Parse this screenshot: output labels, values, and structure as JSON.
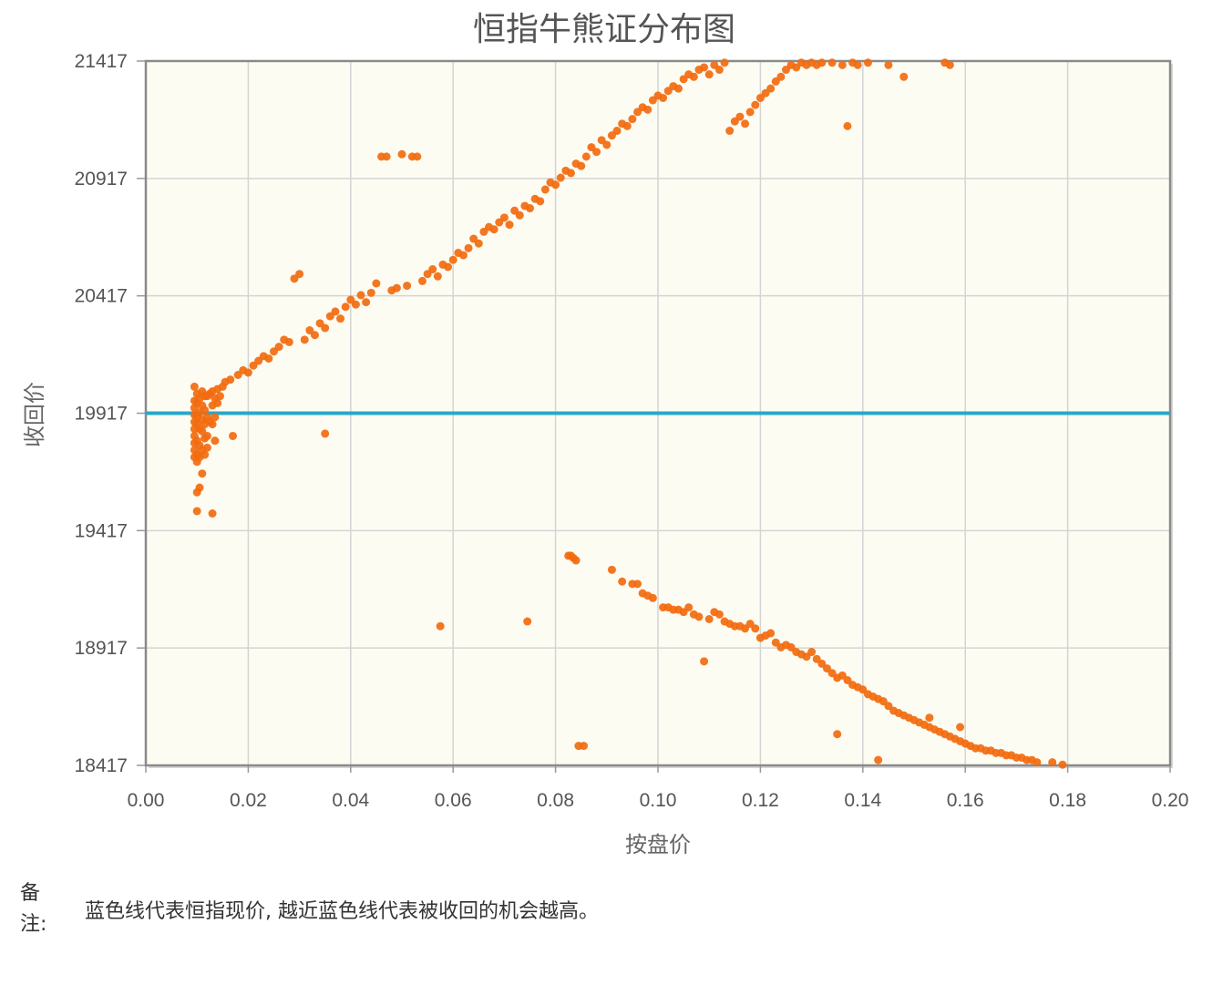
{
  "chart_data": {
    "type": "scatter",
    "title": "恒指牛熊证分布图",
    "xlabel": "按盘价",
    "ylabel": "收回价",
    "xlim": [
      0,
      0.2
    ],
    "ylim": [
      18417,
      21417
    ],
    "x_ticks": [
      "0.00",
      "0.02",
      "0.04",
      "0.06",
      "0.08",
      "0.10",
      "0.12",
      "0.14",
      "0.16",
      "0.18",
      "0.20"
    ],
    "y_ticks": [
      "18417",
      "18917",
      "19417",
      "19917",
      "20417",
      "20917",
      "21417"
    ],
    "grid": true,
    "reference_line": {
      "y": 19917,
      "color": "#29a7c9"
    },
    "marker_color": "#f26b0f",
    "plot_bg": "#fdfcf3",
    "bull_series": [
      [
        0.0095,
        19970
      ],
      [
        0.0095,
        19940
      ],
      [
        0.0095,
        19910
      ],
      [
        0.0095,
        19880
      ],
      [
        0.0095,
        19850
      ],
      [
        0.0095,
        19820
      ],
      [
        0.0095,
        19790
      ],
      [
        0.0095,
        19760
      ],
      [
        0.0095,
        19730
      ],
      [
        0.0095,
        20030
      ],
      [
        0.01,
        20000
      ],
      [
        0.01,
        19960
      ],
      [
        0.01,
        19900
      ],
      [
        0.01,
        19870
      ],
      [
        0.01,
        19800
      ],
      [
        0.01,
        19740
      ],
      [
        0.01,
        19710
      ],
      [
        0.01,
        19580
      ],
      [
        0.01,
        19500
      ],
      [
        0.0105,
        19980
      ],
      [
        0.0105,
        19920
      ],
      [
        0.0105,
        19850
      ],
      [
        0.0105,
        19780
      ],
      [
        0.0105,
        19730
      ],
      [
        0.0105,
        19600
      ],
      [
        0.011,
        20010
      ],
      [
        0.011,
        19950
      ],
      [
        0.011,
        19890
      ],
      [
        0.011,
        19840
      ],
      [
        0.011,
        19760
      ],
      [
        0.011,
        19660
      ],
      [
        0.0115,
        19990
      ],
      [
        0.0115,
        19930
      ],
      [
        0.0115,
        19870
      ],
      [
        0.0115,
        19810
      ],
      [
        0.0115,
        19740
      ],
      [
        0.012,
        19990
      ],
      [
        0.012,
        19900
      ],
      [
        0.012,
        19820
      ],
      [
        0.012,
        19770
      ],
      [
        0.0125,
        20000
      ],
      [
        0.0125,
        19880
      ],
      [
        0.013,
        20010
      ],
      [
        0.013,
        19950
      ],
      [
        0.013,
        19870
      ],
      [
        0.013,
        19490
      ],
      [
        0.0135,
        19980
      ],
      [
        0.0135,
        19900
      ],
      [
        0.0135,
        19800
      ],
      [
        0.014,
        20020
      ],
      [
        0.014,
        19960
      ],
      [
        0.0145,
        19990
      ],
      [
        0.015,
        20030
      ],
      [
        0.0155,
        20050
      ],
      [
        0.0165,
        20060
      ],
      [
        0.017,
        19820
      ],
      [
        0.018,
        20080
      ],
      [
        0.019,
        20100
      ],
      [
        0.02,
        20090
      ],
      [
        0.021,
        20120
      ],
      [
        0.022,
        20140
      ],
      [
        0.023,
        20160
      ],
      [
        0.024,
        20150
      ],
      [
        0.025,
        20180
      ],
      [
        0.026,
        20200
      ],
      [
        0.027,
        20230
      ],
      [
        0.028,
        20220
      ],
      [
        0.029,
        20490
      ],
      [
        0.03,
        20510
      ],
      [
        0.031,
        20230
      ],
      [
        0.032,
        20270
      ],
      [
        0.033,
        20250
      ],
      [
        0.034,
        20300
      ],
      [
        0.035,
        20280
      ],
      [
        0.036,
        20330
      ],
      [
        0.037,
        20350
      ],
      [
        0.038,
        20320
      ],
      [
        0.039,
        20370
      ],
      [
        0.04,
        20400
      ],
      [
        0.041,
        20380
      ],
      [
        0.042,
        20420
      ],
      [
        0.043,
        20390
      ],
      [
        0.044,
        20430
      ],
      [
        0.045,
        20470
      ],
      [
        0.046,
        21010
      ],
      [
        0.047,
        21010
      ],
      [
        0.048,
        20440
      ],
      [
        0.049,
        20450
      ],
      [
        0.05,
        21020
      ],
      [
        0.051,
        20460
      ],
      [
        0.052,
        21010
      ],
      [
        0.053,
        21010
      ],
      [
        0.035,
        19830
      ],
      [
        0.054,
        20480
      ],
      [
        0.055,
        20510
      ],
      [
        0.056,
        20530
      ],
      [
        0.057,
        20500
      ],
      [
        0.058,
        20550
      ],
      [
        0.059,
        20540
      ],
      [
        0.06,
        20570
      ],
      [
        0.061,
        20600
      ],
      [
        0.062,
        20590
      ],
      [
        0.063,
        20620
      ],
      [
        0.064,
        20660
      ],
      [
        0.065,
        20640
      ],
      [
        0.066,
        20690
      ],
      [
        0.067,
        20710
      ],
      [
        0.068,
        20700
      ],
      [
        0.069,
        20730
      ],
      [
        0.07,
        20750
      ],
      [
        0.071,
        20720
      ],
      [
        0.072,
        20780
      ],
      [
        0.073,
        20760
      ],
      [
        0.074,
        20800
      ],
      [
        0.075,
        20790
      ],
      [
        0.076,
        20830
      ],
      [
        0.077,
        20820
      ],
      [
        0.078,
        20870
      ],
      [
        0.079,
        20900
      ],
      [
        0.08,
        20890
      ],
      [
        0.081,
        20920
      ],
      [
        0.082,
        20950
      ],
      [
        0.083,
        20940
      ],
      [
        0.084,
        20980
      ],
      [
        0.085,
        20970
      ],
      [
        0.086,
        21010
      ],
      [
        0.087,
        21050
      ],
      [
        0.088,
        21030
      ],
      [
        0.089,
        21080
      ],
      [
        0.09,
        21060
      ],
      [
        0.091,
        21100
      ],
      [
        0.092,
        21120
      ],
      [
        0.093,
        21150
      ],
      [
        0.094,
        21140
      ],
      [
        0.095,
        21170
      ],
      [
        0.096,
        21200
      ],
      [
        0.097,
        21220
      ],
      [
        0.098,
        21210
      ],
      [
        0.099,
        21250
      ],
      [
        0.1,
        21270
      ],
      [
        0.101,
        21260
      ],
      [
        0.102,
        21290
      ],
      [
        0.103,
        21310
      ],
      [
        0.104,
        21300
      ],
      [
        0.105,
        21340
      ],
      [
        0.106,
        21360
      ],
      [
        0.107,
        21350
      ],
      [
        0.108,
        21380
      ],
      [
        0.109,
        21390
      ],
      [
        0.11,
        21360
      ],
      [
        0.111,
        21400
      ],
      [
        0.112,
        21380
      ],
      [
        0.113,
        21410
      ],
      [
        0.114,
        21120
      ],
      [
        0.115,
        21160
      ],
      [
        0.116,
        21180
      ],
      [
        0.117,
        21150
      ],
      [
        0.118,
        21200
      ],
      [
        0.119,
        21230
      ],
      [
        0.12,
        21260
      ],
      [
        0.121,
        21280
      ],
      [
        0.122,
        21300
      ],
      [
        0.123,
        21330
      ],
      [
        0.124,
        21350
      ],
      [
        0.125,
        21380
      ],
      [
        0.126,
        21400
      ],
      [
        0.127,
        21390
      ],
      [
        0.128,
        21410
      ],
      [
        0.129,
        21400
      ],
      [
        0.13,
        21410
      ],
      [
        0.131,
        21400
      ],
      [
        0.132,
        21410
      ],
      [
        0.134,
        21410
      ],
      [
        0.136,
        21400
      ],
      [
        0.137,
        21140
      ],
      [
        0.138,
        21410
      ],
      [
        0.139,
        21400
      ],
      [
        0.141,
        21410
      ],
      [
        0.145,
        21400
      ],
      [
        0.148,
        21350
      ],
      [
        0.156,
        21410
      ],
      [
        0.157,
        21400
      ]
    ],
    "bear_series": [
      [
        0.0825,
        19310
      ],
      [
        0.0835,
        19300
      ],
      [
        0.084,
        19290
      ],
      [
        0.083,
        19310
      ],
      [
        0.0845,
        18500
      ],
      [
        0.0855,
        18500
      ],
      [
        0.0575,
        19010
      ],
      [
        0.0745,
        19030
      ],
      [
        0.091,
        19250
      ],
      [
        0.093,
        19200
      ],
      [
        0.095,
        19190
      ],
      [
        0.096,
        19190
      ],
      [
        0.097,
        19150
      ],
      [
        0.098,
        19140
      ],
      [
        0.099,
        19130
      ],
      [
        0.101,
        19090
      ],
      [
        0.102,
        19090
      ],
      [
        0.103,
        19080
      ],
      [
        0.104,
        19080
      ],
      [
        0.105,
        19070
      ],
      [
        0.106,
        19090
      ],
      [
        0.107,
        19060
      ],
      [
        0.108,
        19050
      ],
      [
        0.109,
        18860
      ],
      [
        0.11,
        19040
      ],
      [
        0.111,
        19070
      ],
      [
        0.112,
        19060
      ],
      [
        0.113,
        19030
      ],
      [
        0.114,
        19020
      ],
      [
        0.115,
        19010
      ],
      [
        0.116,
        19010
      ],
      [
        0.117,
        19000
      ],
      [
        0.118,
        19020
      ],
      [
        0.119,
        19000
      ],
      [
        0.12,
        18960
      ],
      [
        0.121,
        18970
      ],
      [
        0.122,
        18980
      ],
      [
        0.123,
        18940
      ],
      [
        0.124,
        18920
      ],
      [
        0.125,
        18930
      ],
      [
        0.126,
        18920
      ],
      [
        0.127,
        18900
      ],
      [
        0.128,
        18890
      ],
      [
        0.129,
        18880
      ],
      [
        0.13,
        18900
      ],
      [
        0.131,
        18870
      ],
      [
        0.132,
        18850
      ],
      [
        0.133,
        18830
      ],
      [
        0.134,
        18810
      ],
      [
        0.135,
        18790
      ],
      [
        0.136,
        18800
      ],
      [
        0.137,
        18780
      ],
      [
        0.138,
        18760
      ],
      [
        0.139,
        18750
      ],
      [
        0.14,
        18740
      ],
      [
        0.141,
        18720
      ],
      [
        0.142,
        18710
      ],
      [
        0.143,
        18700
      ],
      [
        0.144,
        18690
      ],
      [
        0.145,
        18670
      ],
      [
        0.146,
        18650
      ],
      [
        0.147,
        18640
      ],
      [
        0.148,
        18630
      ],
      [
        0.149,
        18620
      ],
      [
        0.15,
        18610
      ],
      [
        0.151,
        18600
      ],
      [
        0.152,
        18590
      ],
      [
        0.153,
        18580
      ],
      [
        0.154,
        18570
      ],
      [
        0.155,
        18560
      ],
      [
        0.156,
        18550
      ],
      [
        0.157,
        18540
      ],
      [
        0.158,
        18530
      ],
      [
        0.159,
        18520
      ],
      [
        0.16,
        18510
      ],
      [
        0.161,
        18500
      ],
      [
        0.162,
        18490
      ],
      [
        0.163,
        18490
      ],
      [
        0.164,
        18480
      ],
      [
        0.165,
        18480
      ],
      [
        0.166,
        18470
      ],
      [
        0.167,
        18470
      ],
      [
        0.168,
        18460
      ],
      [
        0.169,
        18460
      ],
      [
        0.17,
        18450
      ],
      [
        0.171,
        18450
      ],
      [
        0.172,
        18440
      ],
      [
        0.173,
        18440
      ],
      [
        0.174,
        18430
      ],
      [
        0.177,
        18430
      ],
      [
        0.179,
        18420
      ],
      [
        0.135,
        18550
      ],
      [
        0.143,
        18440
      ],
      [
        0.153,
        18620
      ],
      [
        0.159,
        18580
      ]
    ]
  },
  "note": {
    "label": "备注:",
    "text": "蓝色线代表恒指现价, 越近蓝色线代表被收回的机会越高。"
  }
}
